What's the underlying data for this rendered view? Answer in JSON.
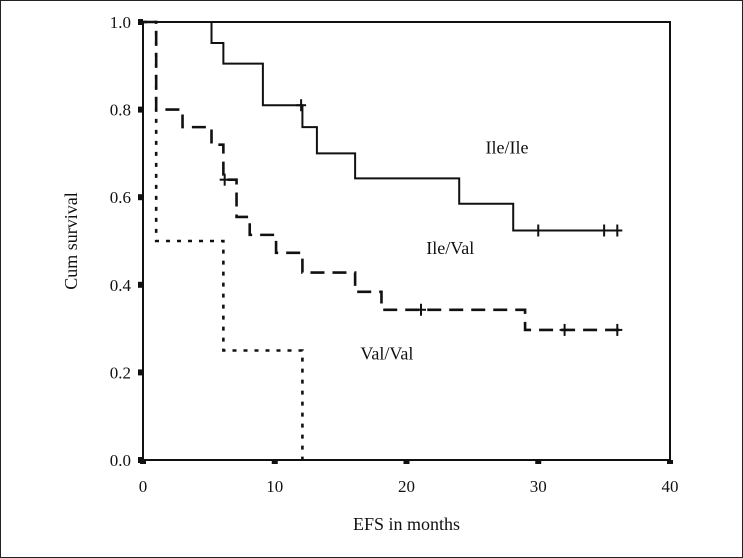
{
  "chart_data": {
    "type": "line",
    "subtype": "kaplan-meier-step",
    "title": "",
    "xlabel": "EFS in months",
    "ylabel": "Cum survival",
    "xlim": [
      0,
      40
    ],
    "ylim": [
      0.0,
      1.0
    ],
    "x_ticks": [
      0,
      10,
      20,
      30,
      40
    ],
    "x_tick_labels": [
      "0",
      "10",
      "20",
      "30",
      "40"
    ],
    "y_ticks": [
      0.0,
      0.2,
      0.4,
      0.6,
      0.8,
      1.0
    ],
    "y_tick_labels": [
      "0.0",
      "0.2",
      "0.4",
      "0.6",
      "0.8",
      "1.0"
    ],
    "grid": false,
    "legend": "inline labels",
    "series": [
      {
        "name": "Ile/Ile",
        "style": "solid",
        "color": "#111111",
        "steps": [
          {
            "t": 0,
            "s": 1.0
          },
          {
            "t": 5.2,
            "s": 0.952
          },
          {
            "t": 6.1,
            "s": 0.905
          },
          {
            "t": 9.1,
            "s": 0.81
          },
          {
            "t": 12.1,
            "s": 0.76
          },
          {
            "t": 13.2,
            "s": 0.7
          },
          {
            "t": 16.1,
            "s": 0.643
          },
          {
            "t": 24.0,
            "s": 0.585
          },
          {
            "t": 28.1,
            "s": 0.524
          }
        ],
        "end_t": 36.3,
        "censored": [
          12.0,
          30.0,
          35.0,
          36.0
        ],
        "label_position": {
          "t": 26.0,
          "s": 0.7
        }
      },
      {
        "name": "Ile/Val",
        "style": "dashed",
        "color": "#111111",
        "steps": [
          {
            "t": 0,
            "s": 1.0
          },
          {
            "t": 1.0,
            "s": 0.8
          },
          {
            "t": 3.0,
            "s": 0.76
          },
          {
            "t": 5.2,
            "s": 0.72
          },
          {
            "t": 6.1,
            "s": 0.64
          },
          {
            "t": 7.1,
            "s": 0.555
          },
          {
            "t": 8.1,
            "s": 0.514
          },
          {
            "t": 10.1,
            "s": 0.473
          },
          {
            "t": 12.1,
            "s": 0.428
          },
          {
            "t": 16.1,
            "s": 0.384
          },
          {
            "t": 18.1,
            "s": 0.343
          },
          {
            "t": 29.0,
            "s": 0.297
          }
        ],
        "end_t": 36.2,
        "censored": [
          6.2,
          21.1,
          32.0,
          36.0
        ],
        "label_position": {
          "t": 21.5,
          "s": 0.47
        }
      },
      {
        "name": "Val/Val",
        "style": "dotted",
        "color": "#111111",
        "steps": [
          {
            "t": 0,
            "s": 1.0
          },
          {
            "t": 1.0,
            "s": 0.5
          },
          {
            "t": 6.1,
            "s": 0.25
          },
          {
            "t": 12.1,
            "s": 0.0
          }
        ],
        "end_t": 12.1,
        "censored": [],
        "label_position": {
          "t": 16.5,
          "s": 0.23
        }
      }
    ]
  }
}
